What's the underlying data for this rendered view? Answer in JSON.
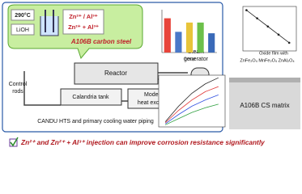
{
  "bubble": {
    "temperature": "290°C",
    "chemical": "LiOH",
    "injection_1": "Zn²⁺ / Al³⁺",
    "injection_2": "Zn²⁺ + Al³⁺",
    "material": "A106B carbon steel"
  },
  "diagram": {
    "reactor": "Reactor",
    "steam_generator": [
      "Steam",
      "generator"
    ],
    "control_rods": [
      "Control",
      "rods"
    ],
    "calandria": "Calandria tank",
    "moderator": [
      "Moderator",
      "heat exchanger"
    ],
    "caption": "CANDU HTS and primary cooling water piping"
  },
  "bar_chart": {
    "x_label": "Group",
    "values": [
      0.96,
      0.58,
      0.84,
      0.84,
      0.54
    ],
    "colors": [
      "#e8443a",
      "#4a78c8",
      "#e8c43a",
      "#6cc04a",
      "#3a6ab8"
    ],
    "ylim": [
      0,
      1.2
    ]
  },
  "depth_profile": {
    "x": [
      2,
      8,
      14,
      20,
      26
    ],
    "y": [
      -0.5,
      -1.6,
      -2.7,
      -3.8,
      -4.9
    ],
    "xlim": [
      0,
      30
    ],
    "ylim": [
      -6,
      0
    ]
  },
  "polarization": {
    "xlim": [
      0,
      10
    ],
    "ylim": [
      0,
      10
    ],
    "series": [
      {
        "color": "#222222",
        "x": [
          1,
          3,
          5,
          7,
          9
        ],
        "y": [
          1,
          4,
          6.5,
          8.3,
          9.5
        ]
      },
      {
        "color": "#e03030",
        "x": [
          1,
          3,
          5,
          7,
          9
        ],
        "y": [
          0.8,
          3.2,
          5.2,
          6.8,
          7.8
        ]
      },
      {
        "color": "#3050e0",
        "x": [
          1,
          3,
          5,
          7,
          9
        ],
        "y": [
          0.6,
          2.4,
          4,
          5.2,
          6.2
        ]
      },
      {
        "color": "#30a040",
        "x": [
          1,
          3,
          5,
          7,
          9
        ],
        "y": [
          0.4,
          1.6,
          2.8,
          3.7,
          4.4
        ]
      }
    ]
  },
  "film": {
    "label": "Oxide film with",
    "compounds": "ZnFe₂O₄  MnFe₂O₄  ZnAl₂O₄",
    "matrix": "A106B CS matrix"
  },
  "conclusion": "Zn²⁺ and Zn²⁺ + Al³⁺ injection can improve corrosion resistance significantly"
}
